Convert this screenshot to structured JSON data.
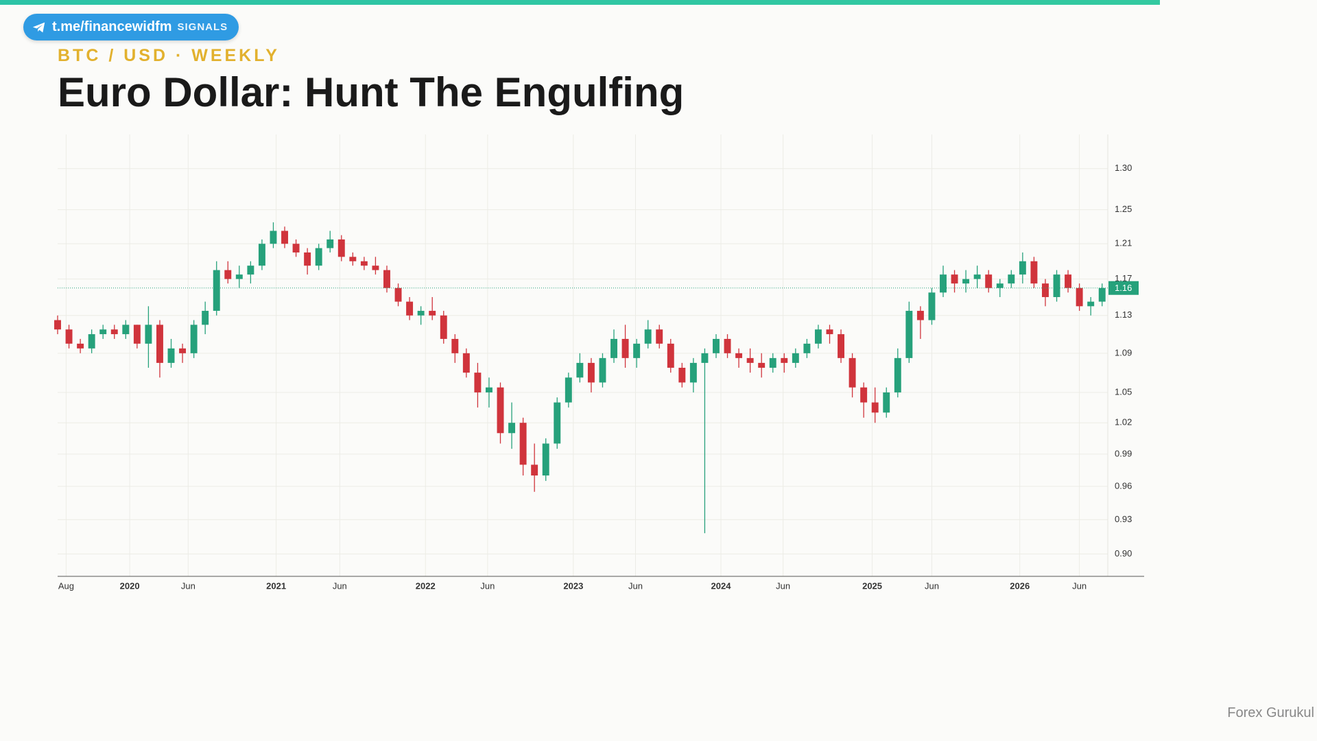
{
  "header": {
    "badge": {
      "handle": "t.me/financewidfm",
      "tag": "SIGNALS"
    },
    "subtitle": "BTC / USD · WEEKLY",
    "title": "Euro Dollar: Hunt The Engulfing"
  },
  "chart_data": {
    "type": "candlestick",
    "log_scale": true,
    "grid": true,
    "up_color": "#26a17b",
    "down_color": "#d0343c",
    "xlim": [
      0,
      370
    ],
    "ylim": [
      0.881,
      1.343
    ],
    "xticks": [
      {
        "value": 3,
        "label": "Aug"
      },
      {
        "value": 25.4,
        "label": "2020"
      },
      {
        "value": 46,
        "label": "Jun"
      },
      {
        "value": 77,
        "label": "2021"
      },
      {
        "value": 99.4,
        "label": "Jun"
      },
      {
        "value": 129.6,
        "label": "2022"
      },
      {
        "value": 151.5,
        "label": "Jun"
      },
      {
        "value": 181.7,
        "label": "2023"
      },
      {
        "value": 203.6,
        "label": "Jun"
      },
      {
        "value": 233.7,
        "label": "2024"
      },
      {
        "value": 255.6,
        "label": "Jun"
      },
      {
        "value": 287,
        "label": "2025"
      },
      {
        "value": 308,
        "label": "Jun"
      },
      {
        "value": 339,
        "label": "2026"
      },
      {
        "value": 360,
        "label": "Jun"
      }
    ],
    "yticks": [
      {
        "value": 1.3,
        "label": "1.30"
      },
      1.25,
      1.21,
      1.17,
      1.13,
      1.09,
      1.05,
      1.02,
      0.99,
      0.96,
      0.93,
      {
        "value": 0.9,
        "label": "0.90"
      }
    ],
    "last_price": 1.16,
    "x": [
      0,
      4,
      8,
      12,
      16,
      20,
      24,
      28,
      32,
      36,
      40,
      44,
      48,
      52,
      56,
      60,
      64,
      68,
      72,
      76,
      80,
      84,
      88,
      92,
      96,
      100,
      104,
      108,
      112,
      116,
      120,
      124,
      128,
      132,
      136,
      140,
      144,
      148,
      152,
      156,
      160,
      164,
      168,
      172,
      176,
      180,
      184,
      188,
      192,
      196,
      200,
      204,
      208,
      212,
      216,
      220,
      224,
      228,
      232,
      236,
      240,
      244,
      248,
      252,
      256,
      260,
      264,
      268,
      272,
      276,
      280,
      284,
      288,
      292,
      296,
      300,
      304,
      308,
      312,
      316,
      320,
      324,
      328,
      332,
      336,
      340,
      344,
      348,
      352,
      356,
      360,
      364,
      368
    ],
    "open": [
      1.125,
      1.115,
      1.1,
      1.095,
      1.11,
      1.115,
      1.11,
      1.12,
      1.1,
      1.12,
      1.08,
      1.095,
      1.09,
      1.12,
      1.135,
      1.18,
      1.17,
      1.175,
      1.185,
      1.21,
      1.225,
      1.21,
      1.2,
      1.185,
      1.205,
      1.215,
      1.195,
      1.19,
      1.185,
      1.18,
      1.16,
      1.145,
      1.13,
      1.135,
      1.13,
      1.105,
      1.09,
      1.07,
      1.05,
      1.055,
      1.01,
      1.02,
      0.98,
      0.97,
      1.0,
      1.04,
      1.065,
      1.08,
      1.06,
      1.085,
      1.105,
      1.085,
      1.1,
      1.115,
      1.1,
      1.075,
      1.06,
      1.08,
      1.09,
      1.105,
      1.09,
      1.085,
      1.08,
      1.075,
      1.085,
      1.08,
      1.09,
      1.1,
      1.115,
      1.11,
      1.085,
      1.055,
      1.04,
      1.03,
      1.05,
      1.085,
      1.135,
      1.125,
      1.155,
      1.175,
      1.165,
      1.17,
      1.175,
      1.16,
      1.165,
      1.175,
      1.19,
      1.165,
      1.15,
      1.175,
      1.16,
      1.14,
      1.145
    ],
    "high": [
      1.13,
      1.12,
      1.105,
      1.115,
      1.12,
      1.12,
      1.125,
      1.12,
      1.14,
      1.125,
      1.105,
      1.1,
      1.125,
      1.145,
      1.19,
      1.19,
      1.185,
      1.19,
      1.215,
      1.235,
      1.23,
      1.215,
      1.205,
      1.21,
      1.225,
      1.22,
      1.2,
      1.195,
      1.195,
      1.185,
      1.165,
      1.15,
      1.14,
      1.15,
      1.135,
      1.11,
      1.095,
      1.08,
      1.065,
      1.06,
      1.04,
      1.025,
      1.0,
      1.005,
      1.045,
      1.07,
      1.09,
      1.085,
      1.09,
      1.115,
      1.12,
      1.105,
      1.125,
      1.12,
      1.105,
      1.08,
      1.085,
      1.095,
      1.11,
      1.11,
      1.095,
      1.095,
      1.09,
      1.09,
      1.09,
      1.095,
      1.105,
      1.12,
      1.12,
      1.115,
      1.09,
      1.06,
      1.055,
      1.055,
      1.095,
      1.145,
      1.14,
      1.16,
      1.185,
      1.18,
      1.18,
      1.185,
      1.18,
      1.17,
      1.18,
      1.2,
      1.195,
      1.17,
      1.18,
      1.18,
      1.165,
      1.15,
      1.165
    ],
    "low": [
      1.11,
      1.095,
      1.09,
      1.09,
      1.105,
      1.105,
      1.105,
      1.095,
      1.075,
      1.065,
      1.075,
      1.08,
      1.085,
      1.11,
      1.13,
      1.165,
      1.16,
      1.165,
      1.18,
      1.205,
      1.205,
      1.195,
      1.175,
      1.18,
      1.2,
      1.19,
      1.185,
      1.18,
      1.175,
      1.155,
      1.14,
      1.125,
      1.12,
      1.125,
      1.1,
      1.08,
      1.065,
      1.035,
      1.035,
      1.0,
      0.995,
      0.97,
      0.955,
      0.965,
      0.995,
      1.035,
      1.06,
      1.05,
      1.055,
      1.08,
      1.075,
      1.075,
      1.095,
      1.095,
      1.07,
      1.055,
      1.05,
      0.918,
      1.085,
      1.085,
      1.075,
      1.07,
      1.065,
      1.07,
      1.07,
      1.075,
      1.085,
      1.095,
      1.1,
      1.08,
      1.045,
      1.025,
      1.02,
      1.025,
      1.045,
      1.08,
      1.105,
      1.12,
      1.15,
      1.155,
      1.155,
      1.16,
      1.155,
      1.15,
      1.16,
      1.165,
      1.16,
      1.14,
      1.145,
      1.155,
      1.135,
      1.13,
      1.14
    ],
    "close": [
      1.115,
      1.1,
      1.095,
      1.11,
      1.115,
      1.11,
      1.12,
      1.1,
      1.12,
      1.08,
      1.095,
      1.09,
      1.12,
      1.135,
      1.18,
      1.17,
      1.175,
      1.185,
      1.21,
      1.225,
      1.21,
      1.2,
      1.185,
      1.205,
      1.215,
      1.195,
      1.19,
      1.185,
      1.18,
      1.16,
      1.145,
      1.13,
      1.135,
      1.13,
      1.105,
      1.09,
      1.07,
      1.05,
      1.055,
      1.01,
      1.02,
      0.98,
      0.97,
      1.0,
      1.04,
      1.065,
      1.08,
      1.06,
      1.085,
      1.105,
      1.085,
      1.1,
      1.115,
      1.1,
      1.075,
      1.06,
      1.08,
      1.09,
      1.105,
      1.09,
      1.085,
      1.08,
      1.075,
      1.085,
      1.08,
      1.09,
      1.1,
      1.115,
      1.11,
      1.085,
      1.055,
      1.04,
      1.03,
      1.05,
      1.085,
      1.135,
      1.125,
      1.155,
      1.175,
      1.165,
      1.17,
      1.175,
      1.16,
      1.165,
      1.175,
      1.19,
      1.165,
      1.15,
      1.175,
      1.16,
      1.14,
      1.145,
      1.16
    ]
  },
  "footer": {
    "credit": "Forex Gurukul"
  }
}
